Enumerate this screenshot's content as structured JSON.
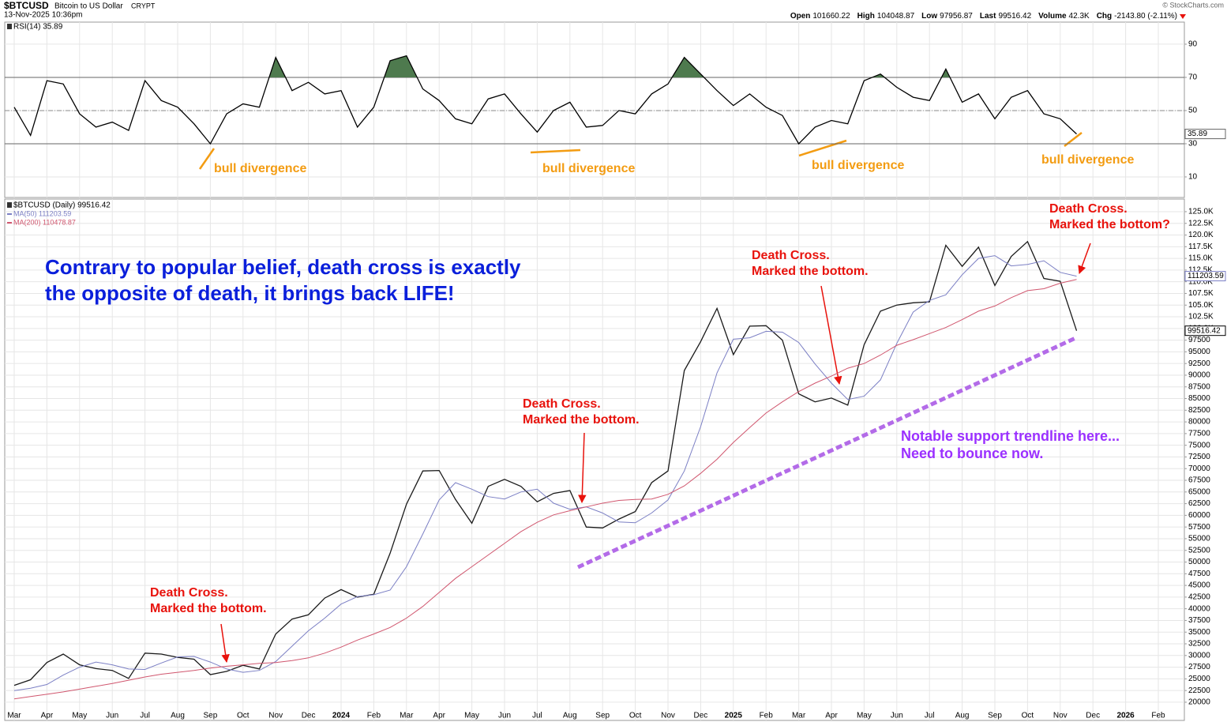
{
  "header": {
    "symbol": "$BTCUSD",
    "name": "Bitcoin to US Dollar",
    "exchange": "CRYPT",
    "timestamp": "13-Nov-2025 10:36pm",
    "quote": [
      {
        "label": "Open",
        "value": "101660.22"
      },
      {
        "label": "High",
        "value": "104048.87"
      },
      {
        "label": "Low",
        "value": "97956.87"
      },
      {
        "label": "Last",
        "value": "99516.42"
      },
      {
        "label": "Volume",
        "value": "42.3K"
      },
      {
        "label": "Chg",
        "value": "-2143.80 (-2.11%)"
      }
    ],
    "copyright": "© StockCharts.com"
  },
  "chart_data": [
    {
      "type": "line",
      "title": "RSI(14) 35.89",
      "ylim": [
        -2.4,
        103.3
      ],
      "yticks": [
        10,
        30,
        50,
        70,
        90
      ],
      "overbought": 70,
      "oversold": 30,
      "midline": 50,
      "grid": true,
      "overbought_color": "#4e7a4e",
      "oversold_color": "#8b4a45",
      "series": [
        {
          "name": "RSI(14)",
          "color": "#000000",
          "values": [
            52,
            35,
            68,
            66,
            48,
            40,
            43,
            38,
            68,
            56,
            52,
            42,
            30,
            48,
            54,
            52,
            82,
            62,
            67,
            60,
            62,
            40,
            52,
            80,
            83,
            63,
            56,
            45,
            42,
            57,
            60,
            48,
            37,
            50,
            55,
            40,
            41,
            50,
            48,
            60,
            66,
            82,
            72,
            62,
            53,
            60,
            52,
            47,
            30,
            40,
            44,
            42,
            68,
            72,
            64,
            58,
            56,
            75,
            55,
            60,
            45,
            58,
            62,
            48,
            45,
            35.89,
            null,
            null,
            null,
            null,
            null
          ]
        }
      ],
      "annotations": [
        {
          "lines": [
            "bull divergence"
          ]
        },
        {
          "lines": [
            "bull divergence"
          ]
        },
        {
          "lines": [
            "bull divergence"
          ]
        },
        {
          "lines": [
            "bull divergence"
          ]
        }
      ]
    },
    {
      "type": "line",
      "ylim": [
        16100,
        127700
      ],
      "grid": true,
      "categories": [
        "Mar",
        null,
        "Apr",
        null,
        "May",
        null,
        "Jun",
        null,
        "Jul",
        null,
        "Aug",
        null,
        "Sep",
        null,
        "Oct",
        null,
        "Nov",
        null,
        "Dec",
        null,
        "2024",
        null,
        "Feb",
        null,
        "Mar",
        null,
        "Apr",
        null,
        "May",
        null,
        "Jun",
        null,
        "Jul",
        null,
        "Aug",
        null,
        "Sep",
        null,
        "Oct",
        null,
        "Nov",
        null,
        "Dec",
        null,
        "2025",
        null,
        "Feb",
        null,
        "Mar",
        null,
        "Apr",
        null,
        "May",
        null,
        "Jun",
        null,
        "Jul",
        null,
        "Aug",
        null,
        "Sep",
        null,
        "Oct",
        null,
        "Nov",
        null,
        "Dec",
        null,
        "2026",
        null,
        "Feb"
      ],
      "yticks": [
        20000,
        22500,
        25000,
        27500,
        30000,
        32500,
        35000,
        37500,
        40000,
        42500,
        45000,
        47500,
        50000,
        52500,
        55000,
        57500,
        60000,
        62500,
        65000,
        67500,
        70000,
        72500,
        75000,
        77500,
        80000,
        82500,
        85000,
        87500,
        90000,
        92500,
        95000,
        97500,
        {
          "value": 100000,
          "label": "100.0K"
        },
        {
          "value": 102500,
          "label": "102.5K"
        },
        {
          "value": 105000,
          "label": "105.0K"
        },
        {
          "value": 107500,
          "label": "107.5K"
        },
        {
          "value": 110000,
          "label": "110.0K"
        },
        {
          "value": 112500,
          "label": "112.5K"
        },
        {
          "value": 115000,
          "label": "115.0K"
        },
        {
          "value": 117500,
          "label": "117.5K"
        },
        {
          "value": 120000,
          "label": "120.0K"
        },
        {
          "value": 122500,
          "label": "122.5K"
        },
        {
          "value": 125000,
          "label": "125.0K"
        }
      ],
      "series": [
        {
          "name": "$BTCUSD (Daily) 99516.42",
          "color": "#1a1a1a",
          "values": [
            23600,
            24800,
            28500,
            30300,
            28000,
            27200,
            26800,
            25100,
            30500,
            30300,
            29600,
            29200,
            25900,
            26600,
            27900,
            27100,
            34600,
            37800,
            38700,
            42300,
            44100,
            42500,
            43100,
            51900,
            62400,
            69500,
            69600,
            63400,
            58300,
            66200,
            67700,
            66200,
            62900,
            64700,
            65300,
            57500,
            57300,
            59200,
            60800,
            67000,
            69500,
            91000,
            97200,
            104300,
            94400,
            100500,
            100600,
            97500,
            86000,
            84300,
            85100,
            83600,
            96500,
            103700,
            105000,
            105500,
            105700,
            117800,
            113300,
            117400,
            109200,
            115400,
            118600,
            110700,
            110100,
            99516.42,
            null,
            null,
            null,
            null,
            null
          ]
        },
        {
          "name": "MA(50) 111203.59",
          "color": "#7b7fc4",
          "values": [
            22500,
            23000,
            23800,
            25800,
            27500,
            28600,
            28000,
            27100,
            27000,
            28400,
            29700,
            29800,
            28600,
            27100,
            26400,
            26800,
            28700,
            32000,
            35300,
            38000,
            41000,
            42600,
            43000,
            44000,
            49000,
            56000,
            63300,
            67000,
            65600,
            64000,
            63500,
            65000,
            65600,
            62600,
            61300,
            61800,
            60500,
            58600,
            58400,
            60500,
            63300,
            69500,
            79000,
            90500,
            97700,
            98000,
            99400,
            99200,
            97000,
            92400,
            88300,
            84800,
            85500,
            89000,
            96800,
            103500,
            106000,
            107200,
            111500,
            115000,
            115600,
            113400,
            113700,
            114500,
            112000,
            111203.59,
            null,
            null,
            null,
            null,
            null
          ]
        },
        {
          "name": "MA(200) 110478.87",
          "color": "#d0566e",
          "values": [
            20700,
            21200,
            21700,
            22200,
            22800,
            23400,
            24000,
            24700,
            25400,
            26000,
            26400,
            26800,
            27300,
            27700,
            28000,
            28300,
            28500,
            28900,
            29500,
            30500,
            31800,
            33300,
            34600,
            36000,
            38000,
            40500,
            43500,
            46500,
            49000,
            51500,
            54000,
            56500,
            58500,
            60100,
            61000,
            61800,
            62600,
            63200,
            63400,
            63500,
            64500,
            66300,
            69000,
            72000,
            75600,
            78800,
            81900,
            84300,
            86500,
            88300,
            89800,
            91500,
            92500,
            94300,
            96400,
            97600,
            98900,
            100200,
            101900,
            103700,
            104800,
            106600,
            108100,
            108500,
            109700,
            110478.87,
            null,
            null,
            null,
            null,
            null
          ]
        }
      ],
      "annotations": [
        {
          "lines": [
            "Contrary to popular belief, death cross is exactly",
            "the opposite of death, it brings back LIFE!"
          ]
        },
        {
          "lines": [
            "Death Cross.",
            "Marked the bottom."
          ]
        },
        {
          "lines": [
            "Death Cross.",
            "Marked the bottom."
          ]
        },
        {
          "lines": [
            "Death Cross.",
            "Marked the bottom."
          ]
        },
        {
          "lines": [
            "Death Cross.",
            "Marked the bottom?"
          ]
        },
        {
          "lines": [
            "Notable support trendline here...",
            "Need to bounce now."
          ]
        }
      ]
    }
  ]
}
